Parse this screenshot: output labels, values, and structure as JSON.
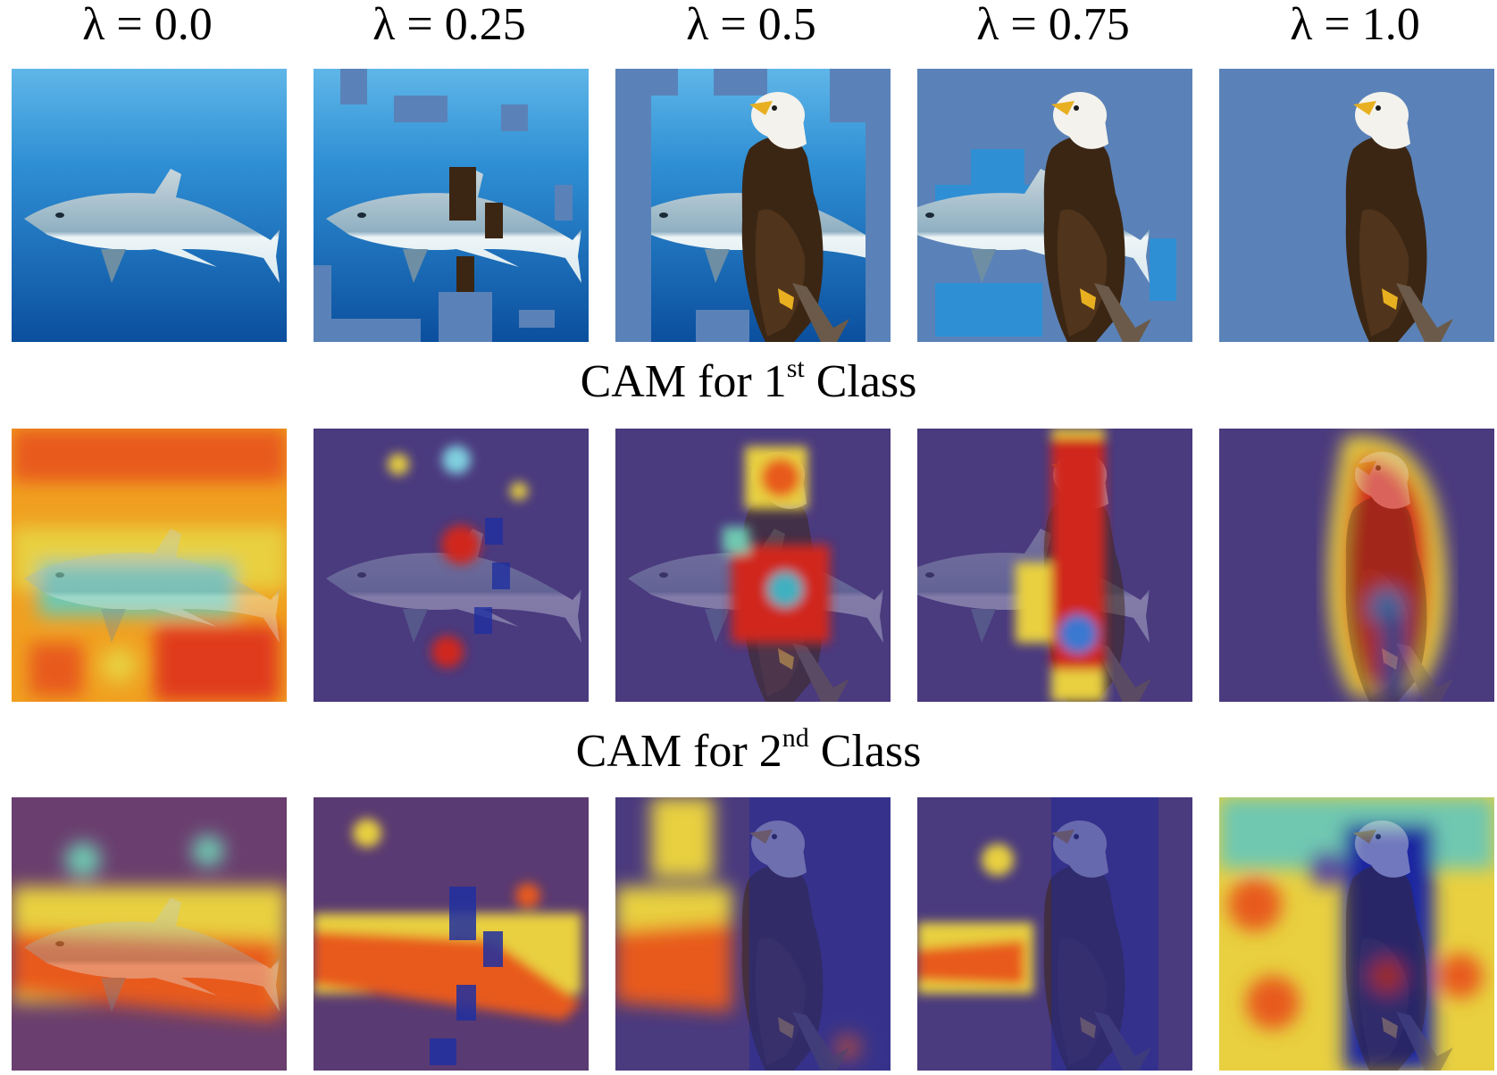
{
  "columns": [
    {
      "lambda_label": "λ = 0.0",
      "lambda": 0.0
    },
    {
      "lambda_label": "λ = 0.25",
      "lambda": 0.25
    },
    {
      "lambda_label": "λ = 0.5",
      "lambda": 0.5
    },
    {
      "lambda_label": "λ = 0.75",
      "lambda": 0.75
    },
    {
      "lambda_label": "λ = 1.0",
      "lambda": 1.0
    }
  ],
  "captions": {
    "cam1": {
      "prefix": "CAM for 1",
      "sup": "st",
      "suffix": " Class"
    },
    "cam2": {
      "prefix": "CAM for 2",
      "sup": "nd",
      "suffix": " Class"
    }
  },
  "rows": [
    "mixed-image",
    "cam-class-1",
    "cam-class-2"
  ],
  "colors": {
    "ocean_light": "#3a9ad6",
    "ocean_deep": "#0a4f9c",
    "eagle_background": "#5a82b8",
    "eagle_body": "#3b2614",
    "eagle_head": "#f4f2ec",
    "beak": "#e8b020",
    "heat_red": "#d0281e",
    "heat_yellow": "#f0d030",
    "heat_cold": "#3a2c6e"
  }
}
